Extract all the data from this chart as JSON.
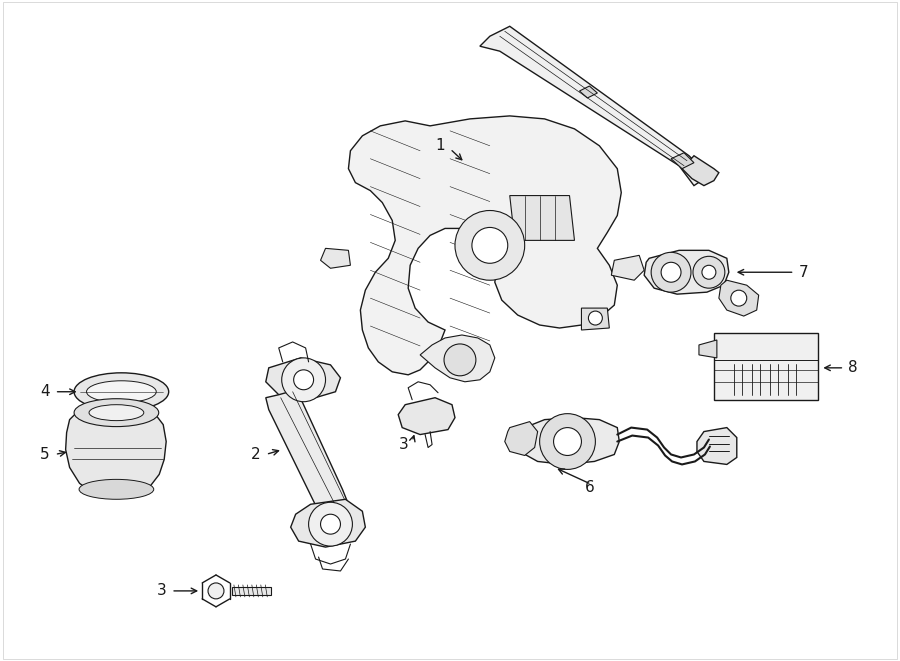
{
  "background_color": "#ffffff",
  "line_color": "#1a1a1a",
  "fill_color": "#f5f5f5",
  "fig_width": 9.0,
  "fig_height": 6.61,
  "dpi": 100,
  "border_color": "#cccccc"
}
